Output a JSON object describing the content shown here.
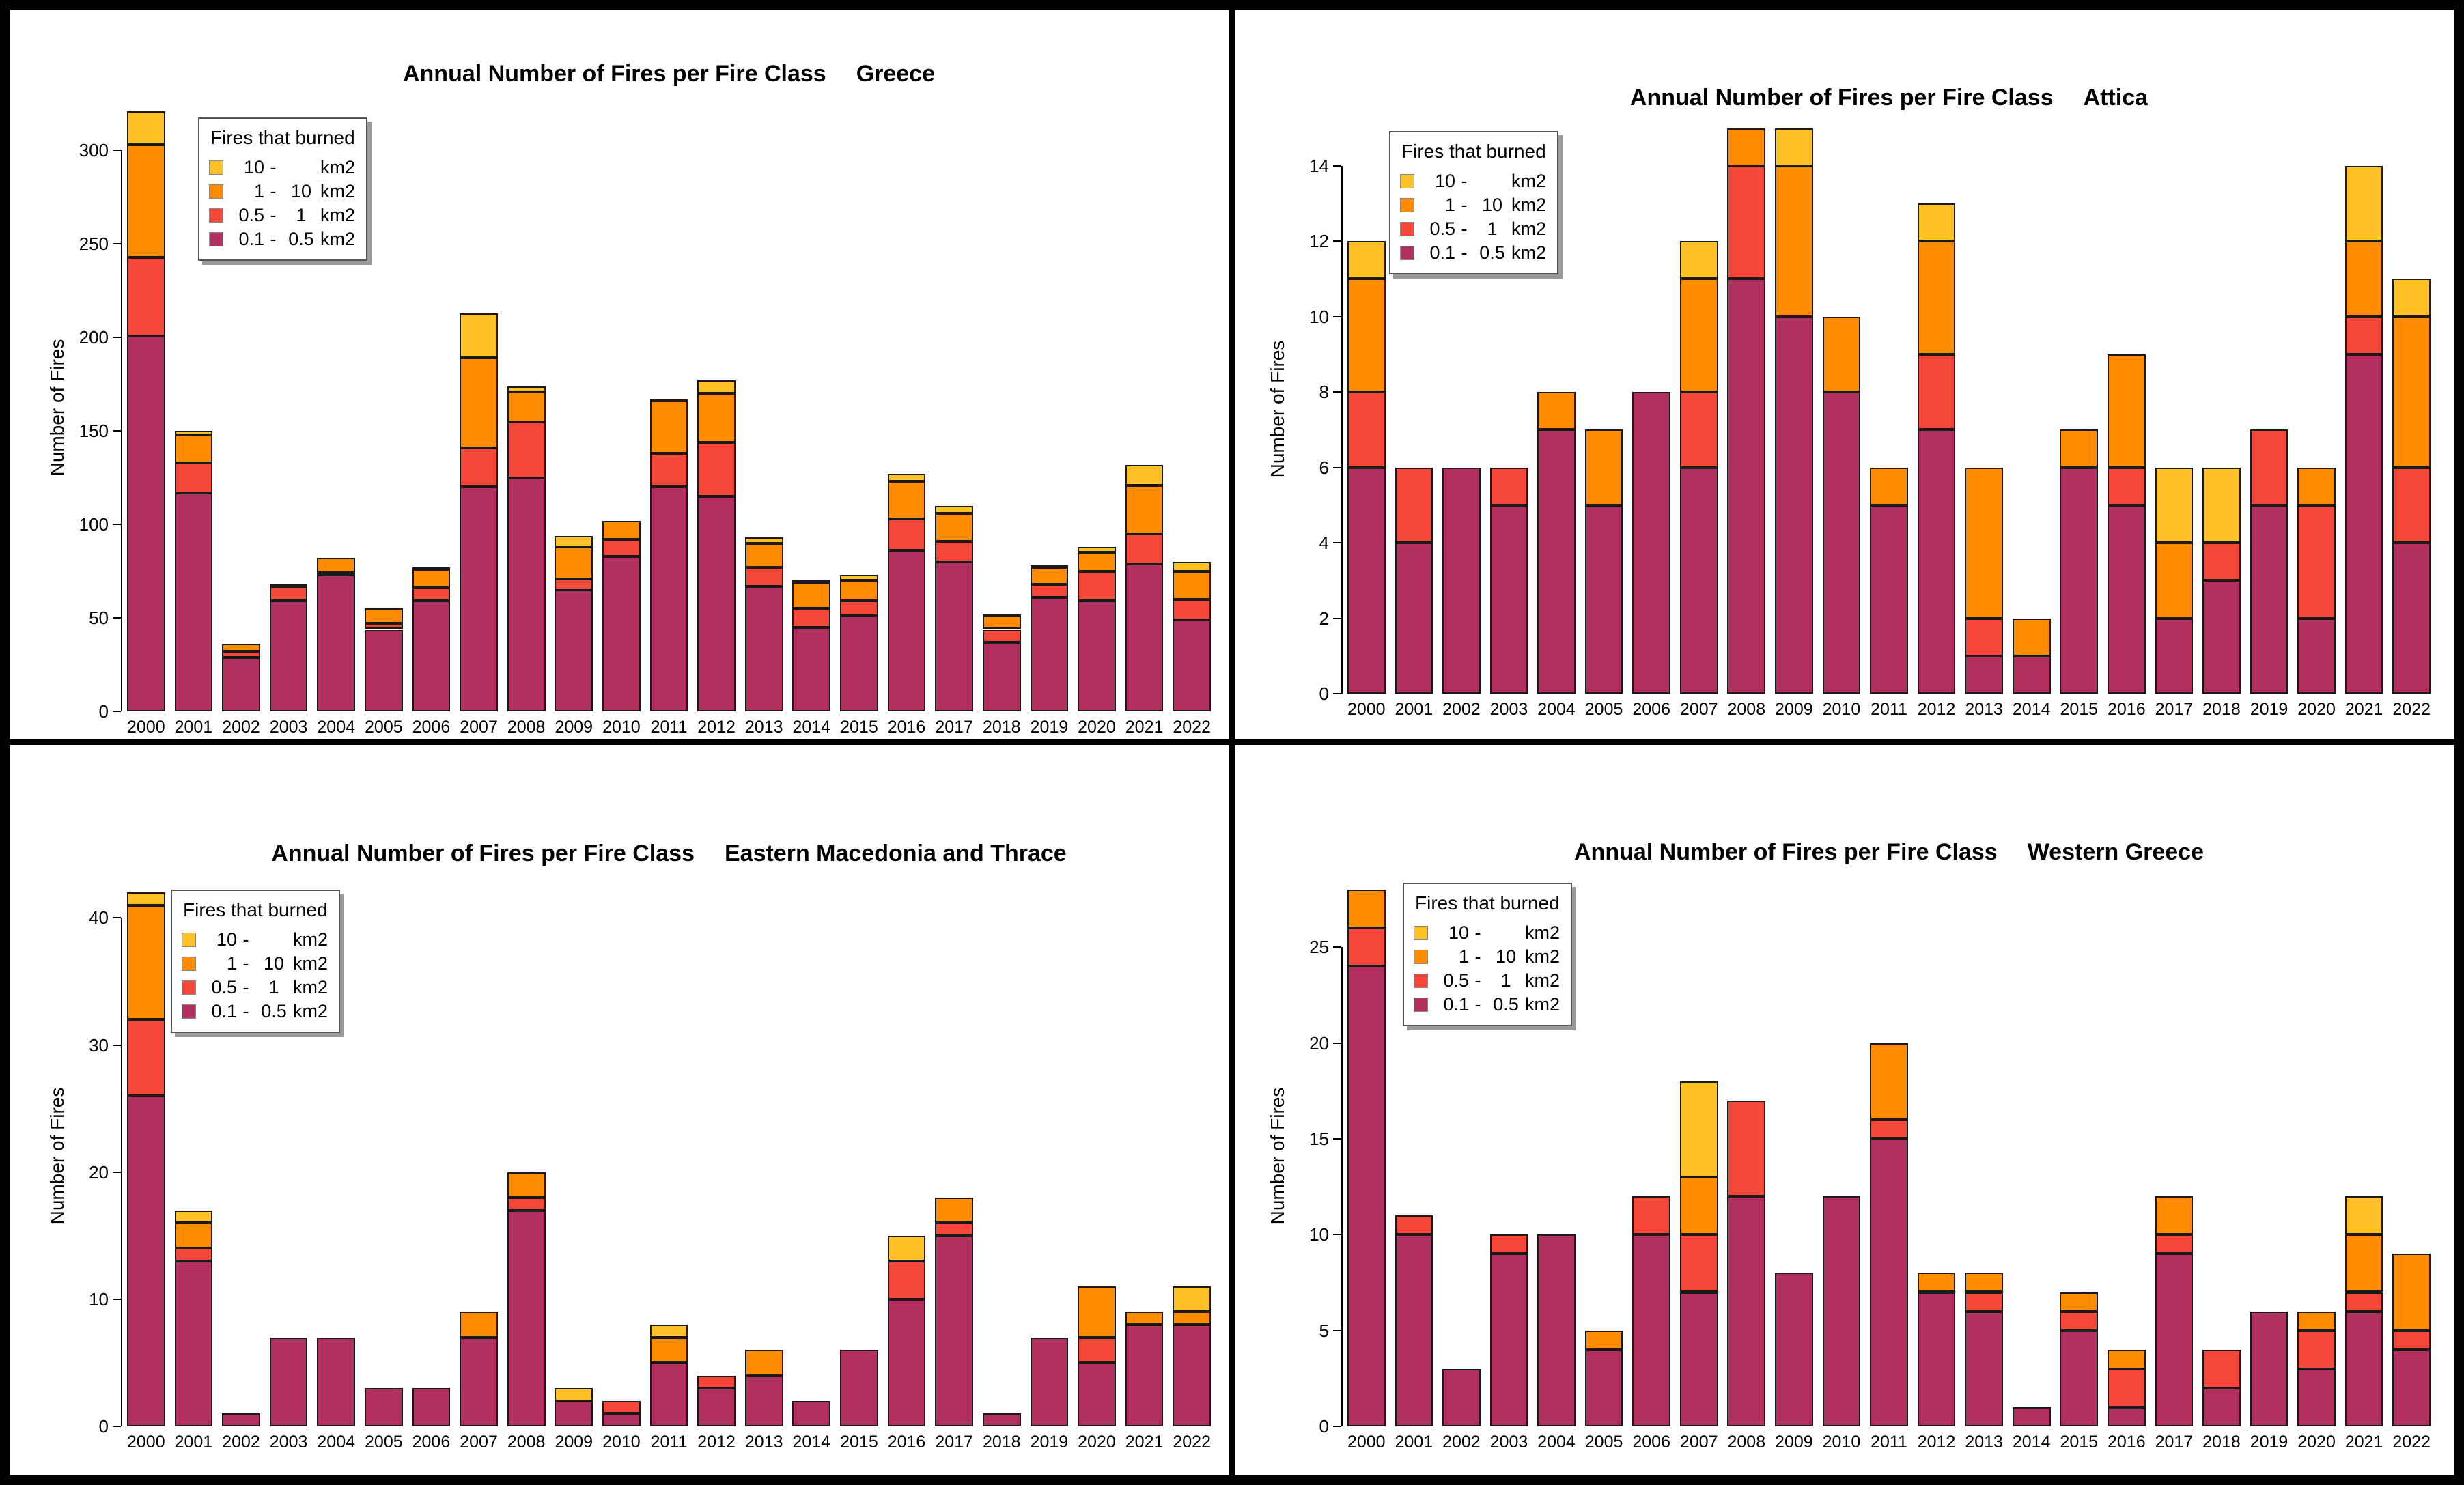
{
  "page": {
    "background": "#ffffff",
    "frame_color": "#000000"
  },
  "legend": {
    "title": "Fires that burned",
    "items": [
      {
        "from": "10",
        "to": "",
        "unit": "km2",
        "color": "#FFC125"
      },
      {
        "from": "1",
        "to": "10",
        "unit": "km2",
        "color": "#FF8C00"
      },
      {
        "from": "0.5",
        "to": "1",
        "unit": "km2",
        "color": "#F4473A"
      },
      {
        "from": "0.1",
        "to": "0.5",
        "unit": "km2",
        "color": "#B13060"
      }
    ]
  },
  "chart_data": [
    {
      "type": "bar",
      "stacked": true,
      "title": "Annual Number of Fires per Fire Class",
      "region": "Greece",
      "xlabel": "",
      "ylabel": "Number of Fires",
      "legend_position": "top-left",
      "grid": false,
      "y_ticks": [
        0,
        50,
        100,
        150,
        200,
        250,
        300
      ],
      "ylim": [
        0,
        325
      ],
      "categories": [
        "2000",
        "2001",
        "2002",
        "2003",
        "2004",
        "2005",
        "2006",
        "2007",
        "2008",
        "2009",
        "2010",
        "2011",
        "2012",
        "2013",
        "2014",
        "2015",
        "2016",
        "2017",
        "2018",
        "2019",
        "2020",
        "2021",
        "2022"
      ],
      "stack_bottom_to_top": [
        "0.1 - 0.5 km2",
        "0.5 - 1 km2",
        "1 - 10 km2",
        "10 - km2"
      ],
      "series": [
        {
          "name": "10 - km2",
          "color": "#FFC125",
          "values": [
            18,
            2,
            0,
            0,
            0,
            0,
            1,
            24,
            3,
            6,
            0,
            1,
            7,
            3,
            1,
            3,
            4,
            4,
            1,
            1,
            3,
            11,
            5
          ]
        },
        {
          "name": "1 - 10 km2",
          "color": "#FF8C00",
          "values": [
            60,
            15,
            4,
            1,
            8,
            8,
            10,
            48,
            16,
            17,
            10,
            28,
            26,
            13,
            14,
            11,
            20,
            15,
            7,
            9,
            10,
            26,
            15
          ]
        },
        {
          "name": "0.5 - 1 km2",
          "color": "#F4473A",
          "values": [
            42,
            16,
            3,
            8,
            1,
            3,
            7,
            21,
            30,
            6,
            9,
            18,
            29,
            10,
            10,
            8,
            17,
            11,
            7,
            7,
            16,
            16,
            11
          ]
        },
        {
          "name": "0.1 - 0.5 km2",
          "color": "#B13060",
          "values": [
            201,
            117,
            29,
            59,
            73,
            44,
            59,
            120,
            125,
            65,
            83,
            120,
            115,
            67,
            45,
            51,
            86,
            80,
            37,
            61,
            59,
            79,
            49
          ]
        }
      ]
    },
    {
      "type": "bar",
      "stacked": true,
      "title": "Annual Number of Fires per Fire Class",
      "region": "Attica",
      "xlabel": "",
      "ylabel": "Number of Fires",
      "legend_position": "top-left",
      "grid": false,
      "y_ticks": [
        0,
        2,
        4,
        6,
        8,
        10,
        12,
        14
      ],
      "ylim": [
        0,
        15.1
      ],
      "categories": [
        "2000",
        "2001",
        "2002",
        "2003",
        "2004",
        "2005",
        "2006",
        "2007",
        "2008",
        "2009",
        "2010",
        "2011",
        "2012",
        "2013",
        "2014",
        "2015",
        "2016",
        "2017",
        "2018",
        "2019",
        "2020",
        "2021",
        "2022"
      ],
      "stack_bottom_to_top": [
        "0.1 - 0.5 km2",
        "0.5 - 1 km2",
        "1 - 10 km2",
        "10 - km2"
      ],
      "series": [
        {
          "name": "10 - km2",
          "color": "#FFC125",
          "values": [
            1,
            0,
            0,
            0,
            0,
            0,
            0,
            1,
            0,
            1,
            0,
            0,
            1,
            0,
            0,
            0,
            0,
            2,
            2,
            0,
            0,
            2,
            1
          ]
        },
        {
          "name": "1 - 10 km2",
          "color": "#FF8C00",
          "values": [
            3,
            0,
            0,
            0,
            1,
            2,
            0,
            3,
            1,
            4,
            2,
            1,
            3,
            4,
            1,
            1,
            3,
            2,
            0,
            0,
            1,
            2,
            4
          ]
        },
        {
          "name": "0.5 - 1 km2",
          "color": "#F4473A",
          "values": [
            2,
            2,
            0,
            1,
            0,
            0,
            0,
            2,
            3,
            0,
            0,
            0,
            2,
            1,
            0,
            0,
            1,
            0,
            1,
            2,
            3,
            1,
            2
          ]
        },
        {
          "name": "0.1 - 0.5 km2",
          "color": "#B13060",
          "values": [
            6,
            4,
            6,
            5,
            7,
            5,
            8,
            6,
            11,
            10,
            8,
            5,
            7,
            1,
            1,
            6,
            5,
            2,
            3,
            5,
            2,
            9,
            4
          ]
        }
      ]
    },
    {
      "type": "bar",
      "stacked": true,
      "title": "Annual Number of Fires per Fire Class",
      "region": "Eastern Macedonia and Thrace",
      "xlabel": "",
      "ylabel": "Number of Fires",
      "legend_position": "top-left",
      "grid": false,
      "y_ticks": [
        0,
        10,
        20,
        30,
        40
      ],
      "ylim": [
        0,
        42.6
      ],
      "categories": [
        "2000",
        "2001",
        "2002",
        "2003",
        "2004",
        "2005",
        "2006",
        "2007",
        "2008",
        "2009",
        "2010",
        "2011",
        "2012",
        "2013",
        "2014",
        "2015",
        "2016",
        "2017",
        "2018",
        "2019",
        "2020",
        "2021",
        "2022"
      ],
      "stack_bottom_to_top": [
        "0.1 - 0.5 km2",
        "0.5 - 1 km2",
        "1 - 10 km2",
        "10 - km2"
      ],
      "series": [
        {
          "name": "10 - km2",
          "color": "#FFC125",
          "values": [
            1,
            1,
            0,
            0,
            0,
            0,
            0,
            0,
            0,
            1,
            0,
            1,
            0,
            0,
            0,
            0,
            2,
            0,
            0,
            0,
            0,
            0,
            2
          ]
        },
        {
          "name": "1 - 10 km2",
          "color": "#FF8C00",
          "values": [
            9,
            2,
            0,
            0,
            0,
            0,
            0,
            2,
            2,
            0,
            0,
            2,
            0,
            2,
            0,
            0,
            0,
            2,
            0,
            0,
            4,
            1,
            1
          ]
        },
        {
          "name": "0.5 - 1 km2",
          "color": "#F4473A",
          "values": [
            6,
            1,
            0,
            0,
            0,
            0,
            0,
            0,
            1,
            0,
            1,
            0,
            1,
            0,
            0,
            0,
            3,
            1,
            0,
            0,
            2,
            0,
            0
          ]
        },
        {
          "name": "0.1 - 0.5 km2",
          "color": "#B13060",
          "values": [
            26,
            13,
            1,
            7,
            7,
            3,
            3,
            7,
            17,
            2,
            1,
            5,
            3,
            4,
            2,
            6,
            10,
            15,
            1,
            7,
            5,
            8,
            8
          ]
        }
      ]
    },
    {
      "type": "bar",
      "stacked": true,
      "title": "Annual Number of Fires per Fire Class",
      "region": "Western Greece",
      "xlabel": "",
      "ylabel": "Number of Fires",
      "legend_position": "top-left",
      "grid": false,
      "y_ticks": [
        0,
        5,
        10,
        15,
        20,
        25
      ],
      "ylim": [
        0,
        28.25
      ],
      "categories": [
        "2000",
        "2001",
        "2002",
        "2003",
        "2004",
        "2005",
        "2006",
        "2007",
        "2008",
        "2009",
        "2010",
        "2011",
        "2012",
        "2013",
        "2014",
        "2015",
        "2016",
        "2017",
        "2018",
        "2019",
        "2020",
        "2021",
        "2022"
      ],
      "stack_bottom_to_top": [
        "0.1 - 0.5 km2",
        "0.5 - 1 km2",
        "1 - 10 km2",
        "10 - km2"
      ],
      "series": [
        {
          "name": "10 - km2",
          "color": "#FFC125",
          "values": [
            0,
            0,
            0,
            0,
            0,
            0,
            0,
            5,
            0,
            0,
            0,
            0,
            0,
            0,
            0,
            0,
            0,
            0,
            0,
            0,
            0,
            2,
            0
          ]
        },
        {
          "name": "1 - 10 km2",
          "color": "#FF8C00",
          "values": [
            2,
            0,
            0,
            0,
            0,
            1,
            0,
            3,
            0,
            0,
            0,
            4,
            1,
            1,
            0,
            1,
            1,
            2,
            0,
            0,
            1,
            3,
            4
          ]
        },
        {
          "name": "0.5 - 1 km2",
          "color": "#F4473A",
          "values": [
            2,
            1,
            0,
            1,
            0,
            0,
            2,
            3,
            5,
            0,
            0,
            1,
            0,
            1,
            0,
            1,
            2,
            1,
            2,
            0,
            2,
            1,
            1
          ]
        },
        {
          "name": "0.1 - 0.5 km2",
          "color": "#B13060",
          "values": [
            24,
            10,
            3,
            9,
            10,
            4,
            10,
            7,
            12,
            8,
            12,
            15,
            7,
            6,
            1,
            5,
            1,
            9,
            2,
            6,
            3,
            6,
            4
          ]
        }
      ]
    }
  ]
}
